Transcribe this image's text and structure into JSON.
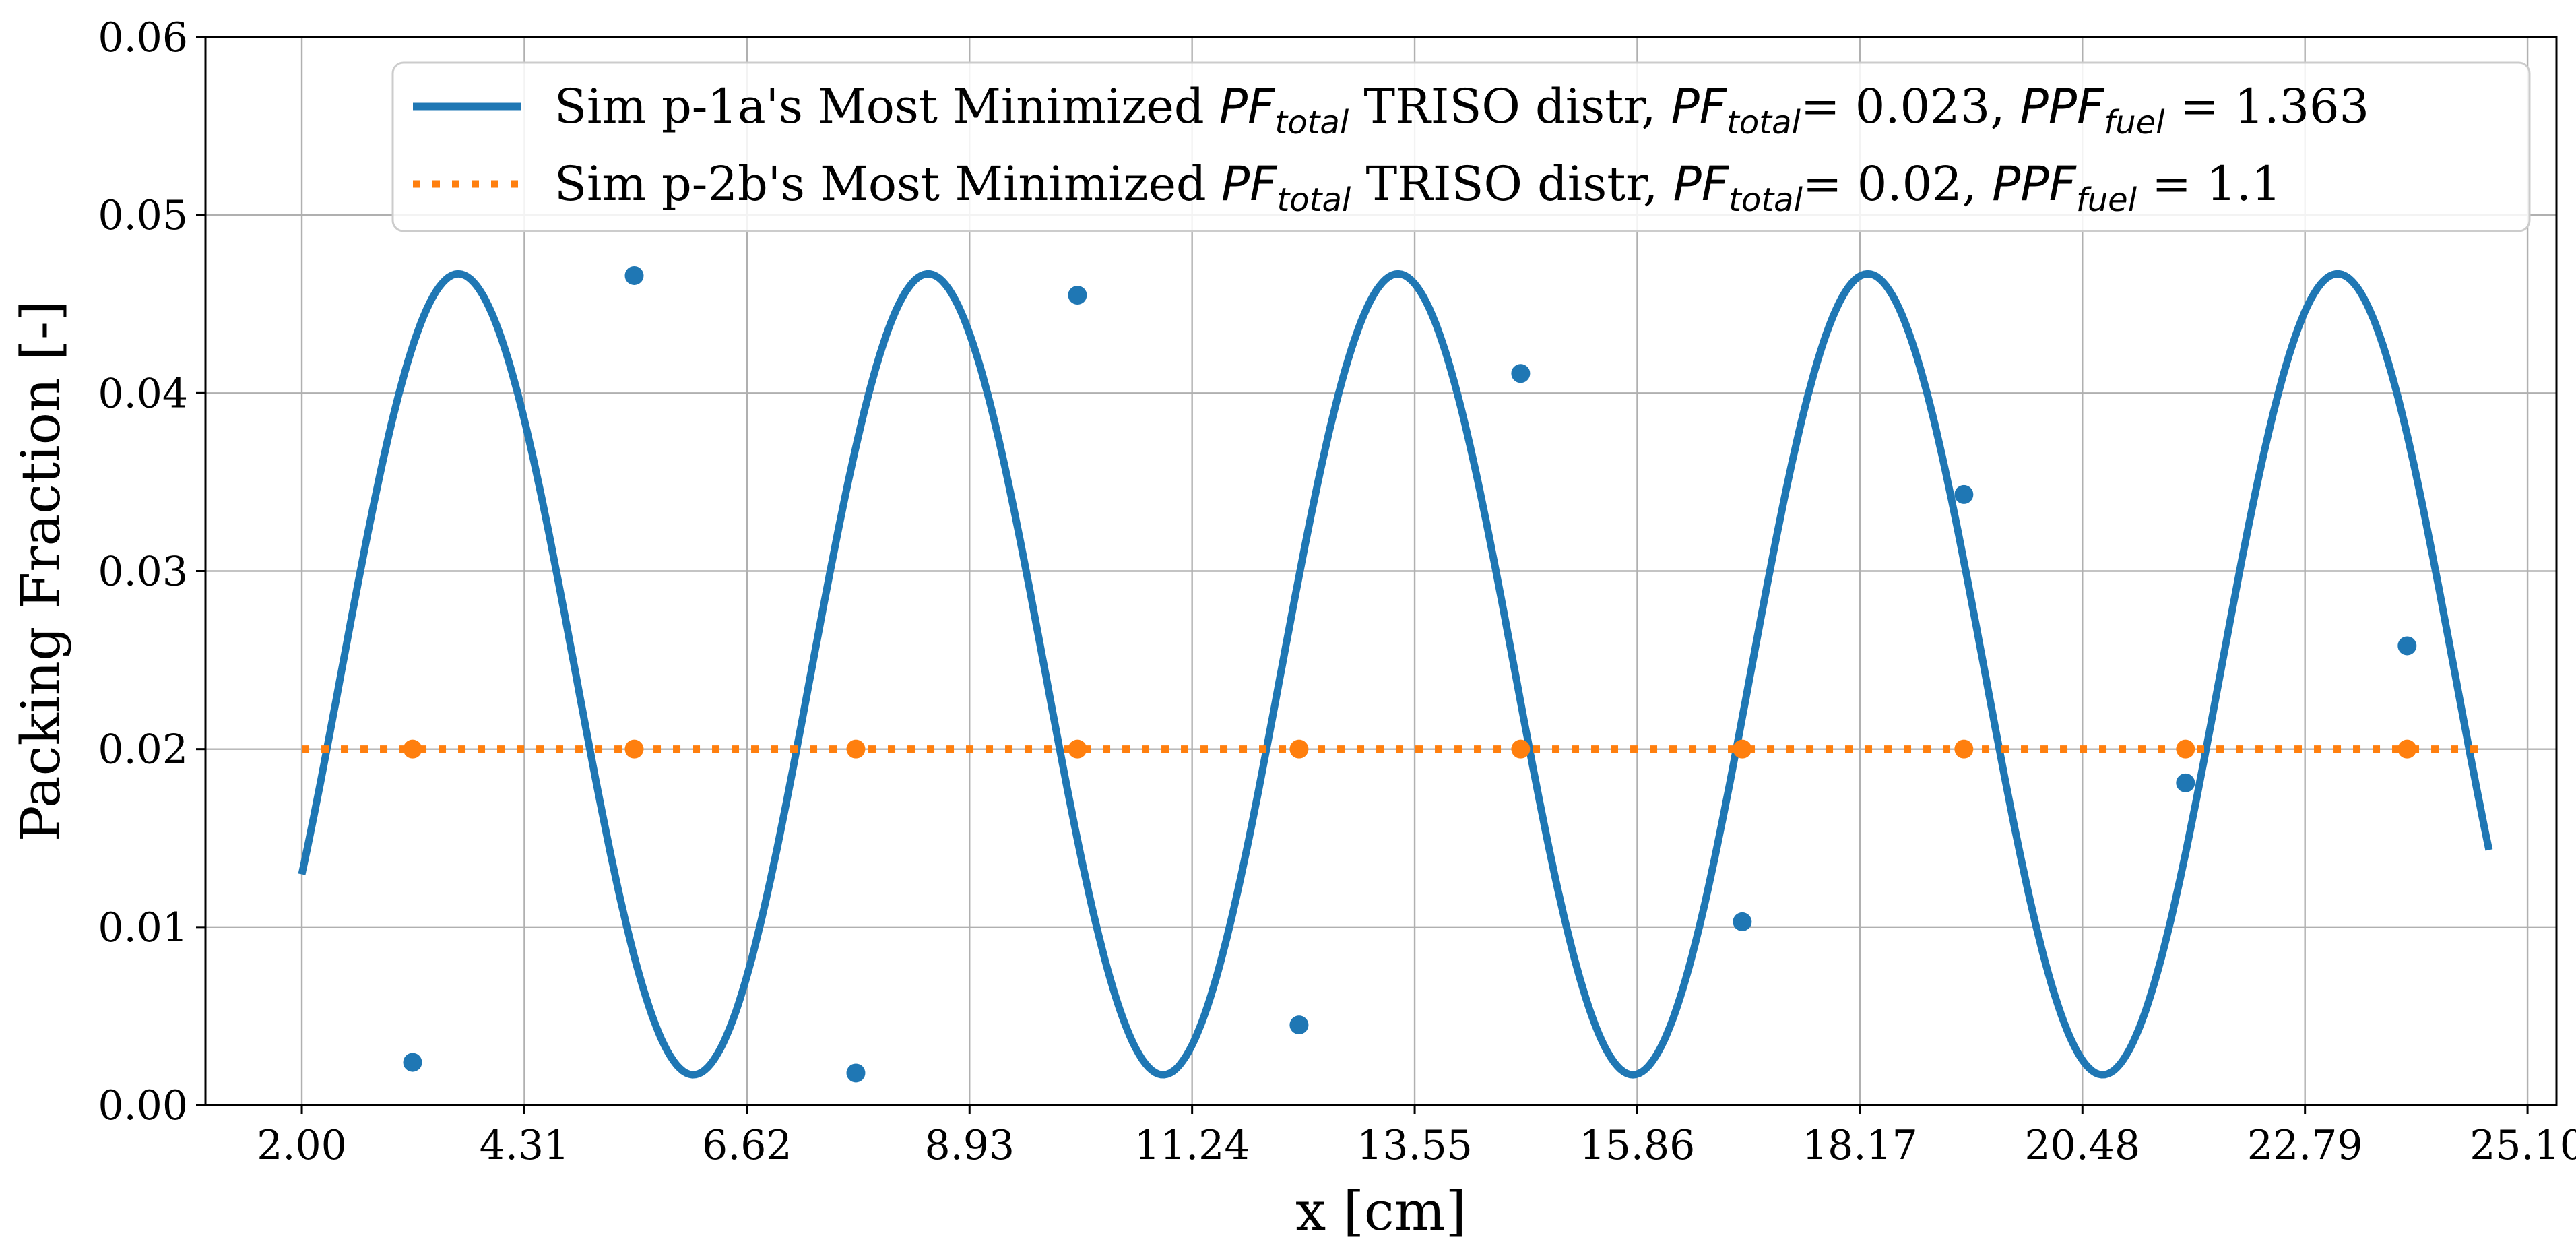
{
  "chart_data": {
    "type": "line",
    "xlabel": "x [cm]",
    "ylabel": "Packing Fraction [-]",
    "xlim": [
      1.0,
      25.4
    ],
    "ylim": [
      0.0,
      0.06
    ],
    "xticks": [
      "2.00",
      "4.31",
      "6.62",
      "8.93",
      "11.24",
      "13.55",
      "15.86",
      "18.17",
      "20.48",
      "22.79",
      "25.10"
    ],
    "yticks": [
      "0.00",
      "0.01",
      "0.02",
      "0.03",
      "0.04",
      "0.05",
      "0.06"
    ],
    "grid": true,
    "legend_position": "top-right",
    "series": [
      {
        "color": "#1f77b4",
        "style": "solid",
        "curve": {
          "x_start": 2.0,
          "x_end": 24.7,
          "offset": 0.0242,
          "amplitude": 0.0225,
          "period": 4.876,
          "phase": -3.1
        },
        "markers": [
          {
            "x": 3.15,
            "y": 0.0024
          },
          {
            "x": 5.45,
            "y": 0.0466
          },
          {
            "x": 7.75,
            "y": 0.0018
          },
          {
            "x": 10.05,
            "y": 0.0455
          },
          {
            "x": 12.35,
            "y": 0.0045
          },
          {
            "x": 14.65,
            "y": 0.0411
          },
          {
            "x": 16.95,
            "y": 0.0103
          },
          {
            "x": 19.25,
            "y": 0.0343
          },
          {
            "x": 21.55,
            "y": 0.0181
          },
          {
            "x": 23.85,
            "y": 0.0258
          }
        ],
        "legend": {
          "prefix": "Sim p-1a's Most Minimized ",
          "pf_base": "PF",
          "pf_sub": "total",
          "middle": " TRISO distr, ",
          "eq_pf": "= 0.023, ",
          "ppf_base": "PPF",
          "ppf_sub": "fuel",
          "eq_ppf": " = 1.363"
        }
      },
      {
        "color": "#ff7f0e",
        "style": "dotted",
        "line": {
          "x_start": 2.0,
          "x_end": 24.6,
          "y": 0.02
        },
        "markers": [
          {
            "x": 3.15,
            "y": 0.02
          },
          {
            "x": 5.45,
            "y": 0.02
          },
          {
            "x": 7.75,
            "y": 0.02
          },
          {
            "x": 10.05,
            "y": 0.02
          },
          {
            "x": 12.35,
            "y": 0.02
          },
          {
            "x": 14.65,
            "y": 0.02
          },
          {
            "x": 16.95,
            "y": 0.02
          },
          {
            "x": 19.25,
            "y": 0.02
          },
          {
            "x": 21.55,
            "y": 0.02
          },
          {
            "x": 23.85,
            "y": 0.02
          }
        ],
        "legend": {
          "prefix": "Sim p-2b's Most Minimized ",
          "pf_base": "PF",
          "pf_sub": "total",
          "middle": " TRISO distr, ",
          "eq_pf": "= 0.02, ",
          "ppf_base": "PPF",
          "ppf_sub": "fuel",
          "eq_ppf": " = 1.1"
        }
      }
    ]
  }
}
